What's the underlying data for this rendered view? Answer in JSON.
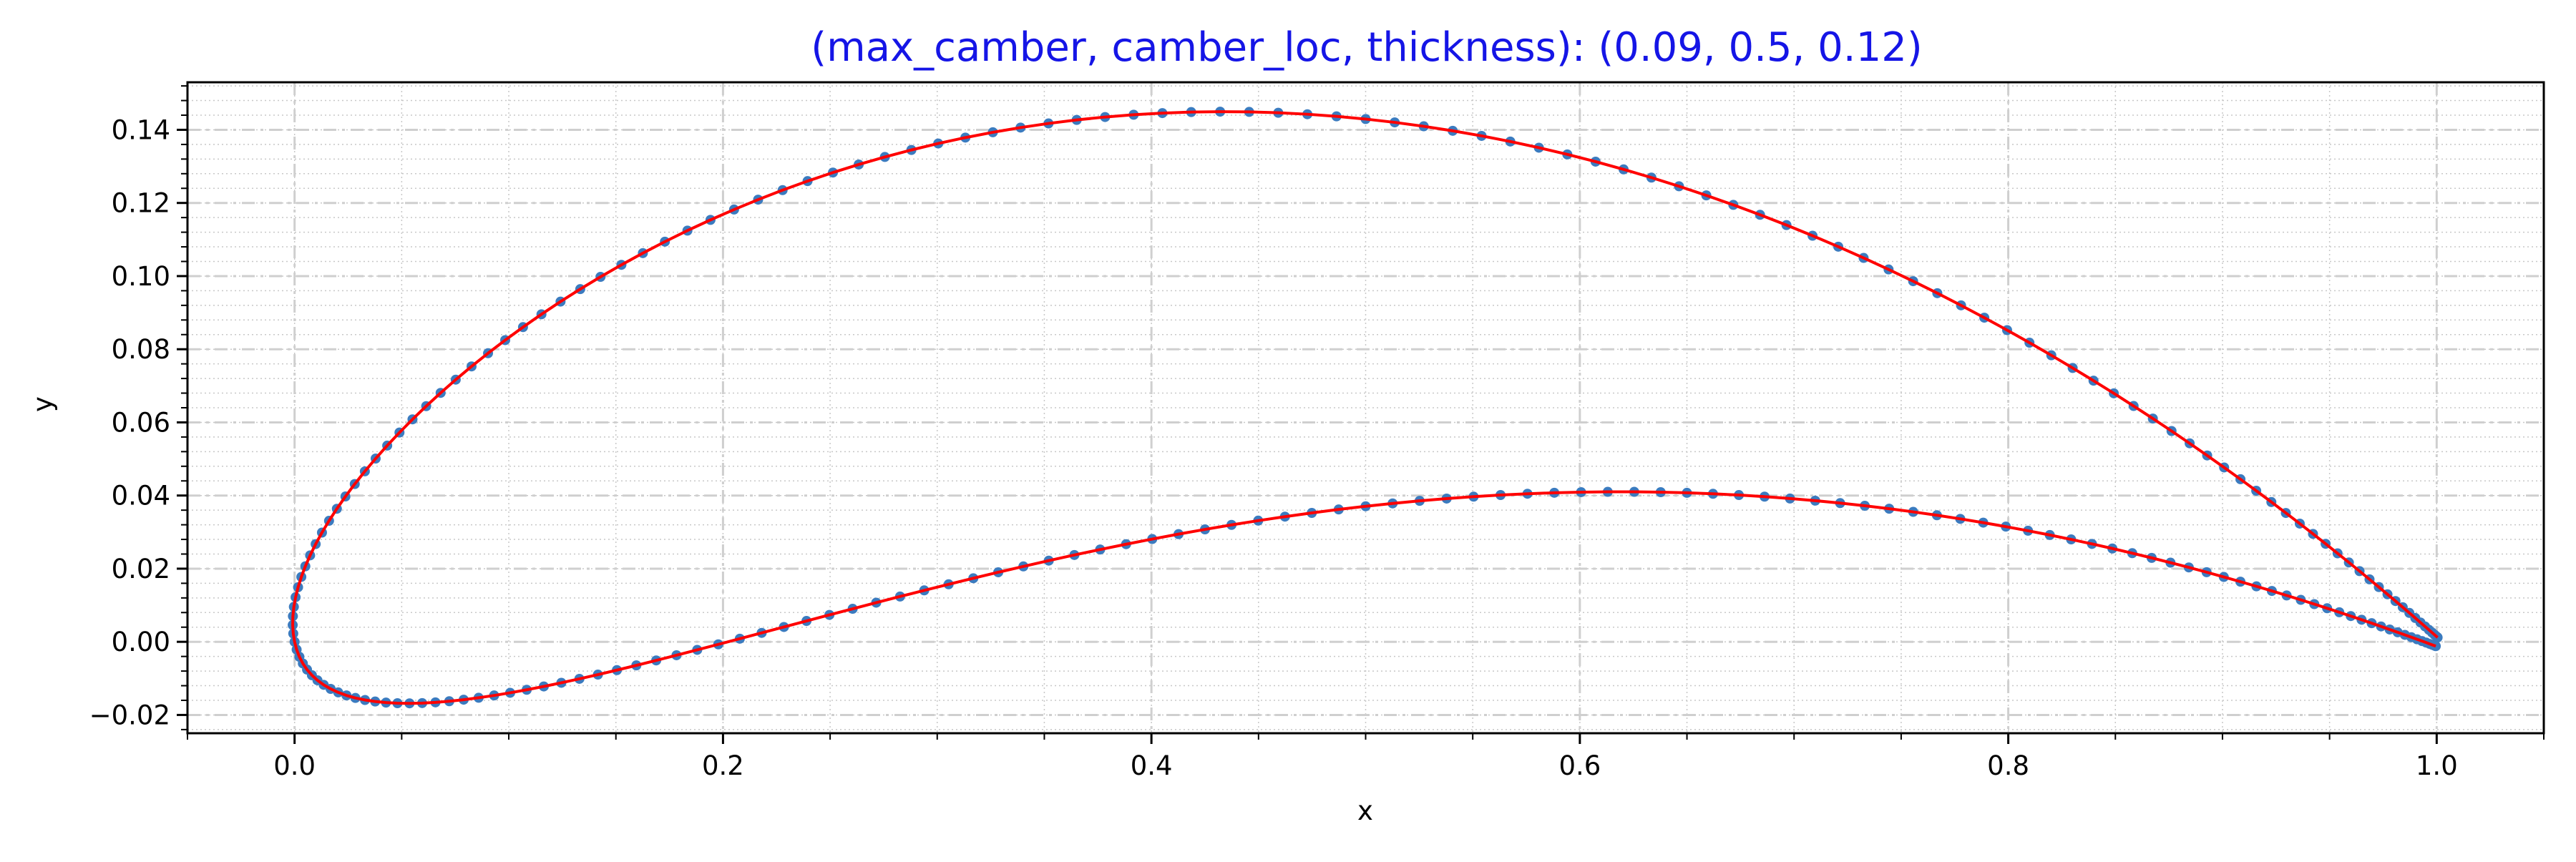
{
  "chart_data": {
    "type": "line",
    "title": "(max_camber, camber_loc, thickness): (0.09, 0.5, 0.12)",
    "xlabel": "x",
    "ylabel": "y",
    "xlim": [
      -0.05,
      1.05
    ],
    "ylim": [
      -0.025,
      0.153
    ],
    "x_ticks": [
      0.0,
      0.2,
      0.4,
      0.6,
      0.8,
      1.0
    ],
    "x_tick_labels": [
      "0.0",
      "0.2",
      "0.4",
      "0.6",
      "0.8",
      "1.0"
    ],
    "y_ticks": [
      -0.02,
      0.0,
      0.02,
      0.04,
      0.06,
      0.08,
      0.1,
      0.12,
      0.14
    ],
    "y_tick_labels": [
      "−0.02",
      "0.00",
      "0.02",
      "0.04",
      "0.06",
      "0.08",
      "0.10",
      "0.12",
      "0.14"
    ],
    "grid": "major dash-dot, minor dotted",
    "airfoil": {
      "max_camber": 0.09,
      "camber_loc": 0.5,
      "thickness": 0.12,
      "n_points_per_surface": 120
    },
    "series": [
      {
        "style": "markers",
        "color": "#3b7bbf"
      },
      {
        "style": "line",
        "color": "#ff0000"
      }
    ]
  }
}
